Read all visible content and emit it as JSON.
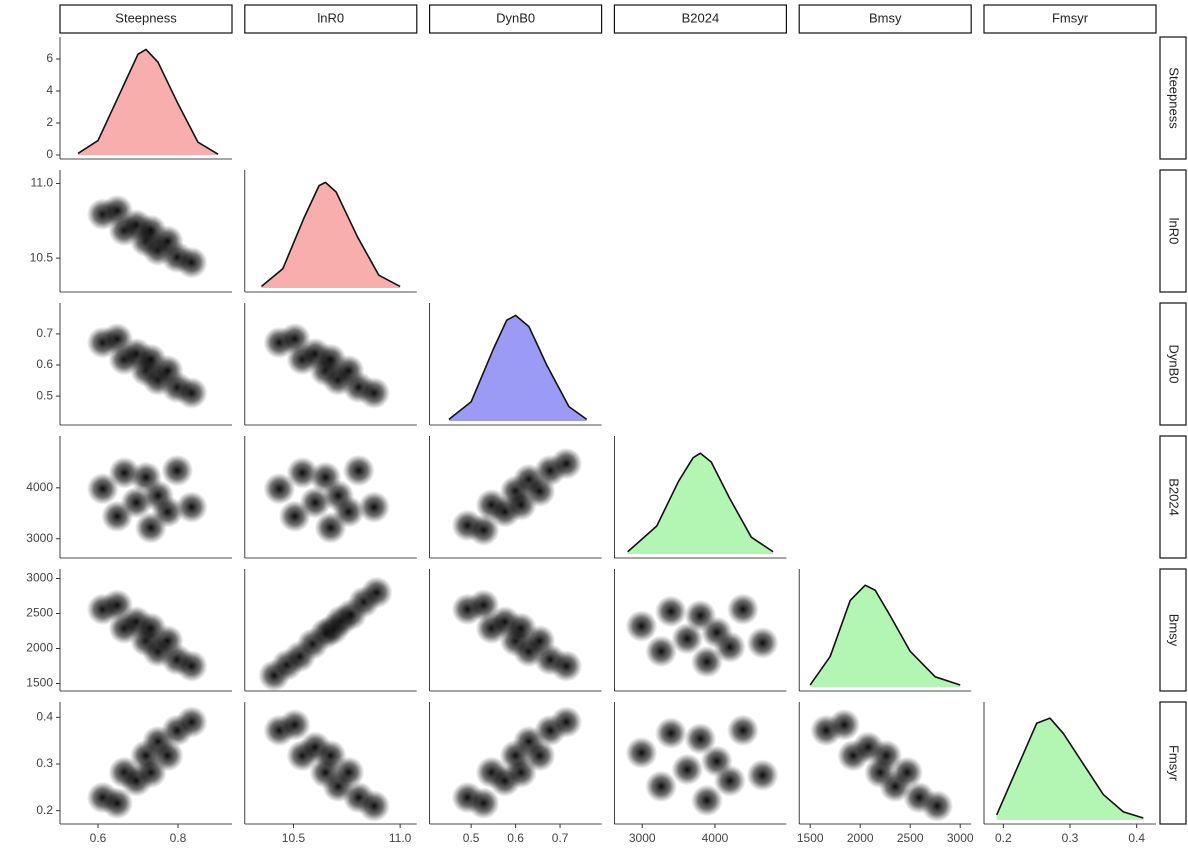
{
  "chart_data": {
    "type": "pairs",
    "variables": [
      {
        "name": "Steepness",
        "color": "#f9aeae",
        "xlim": [
          0.52,
          0.92
        ],
        "xticks": [
          0.6,
          0.8
        ],
        "density": {
          "x": [
            0.55,
            0.6,
            0.65,
            0.7,
            0.72,
            0.75,
            0.8,
            0.85,
            0.9
          ],
          "y": [
            0.1,
            0.9,
            3.6,
            6.3,
            6.6,
            5.8,
            3.2,
            0.8,
            0.05
          ],
          "ylim": [
            0,
            7
          ],
          "yticks": [
            0,
            2,
            4,
            6
          ]
        }
      },
      {
        "name": "lnR0",
        "color": "#f9aeae",
        "xlim": [
          10.3,
          11.05
        ],
        "xticks": [
          10.5,
          {
            "value": 11,
            "label": "11.0"
          }
        ],
        "density": {
          "x": [
            10.35,
            10.45,
            10.55,
            10.62,
            10.65,
            10.7,
            10.8,
            10.9,
            11.0
          ],
          "y": [
            0.05,
            0.6,
            2.2,
            3.2,
            3.3,
            3.0,
            1.6,
            0.4,
            0.05
          ],
          "ylim": [
            0,
            3.5
          ]
        }
      },
      {
        "name": "DynB0",
        "color": "#9b9bf6",
        "xlim": [
          0.42,
          0.78
        ],
        "xticks": [
          0.5,
          0.6,
          0.7
        ],
        "density": {
          "x": [
            0.45,
            0.5,
            0.55,
            0.58,
            0.6,
            0.63,
            0.67,
            0.72,
            0.76
          ],
          "y": [
            0.1,
            1.2,
            4.5,
            6.3,
            6.6,
            5.9,
            3.5,
            0.9,
            0.1
          ],
          "ylim": [
            0,
            7
          ]
        }
      },
      {
        "name": "B2024",
        "color": "#b3f5b3",
        "xlim": [
          2700,
          4900
        ],
        "xticks": [
          3000,
          4000
        ],
        "density": {
          "x": [
            2800,
            3200,
            3500,
            3700,
            3800,
            3950,
            4200,
            4500,
            4800
          ],
          "y": [
            0.02,
            0.25,
            0.65,
            0.86,
            0.9,
            0.82,
            0.5,
            0.15,
            0.02
          ],
          "ylim": [
            0,
            1
          ]
        }
      },
      {
        "name": "Bmsy",
        "color": "#b3f5b3",
        "xlim": [
          1450,
          3050
        ],
        "xticks": [
          1500,
          2000,
          2500,
          3000
        ],
        "density": {
          "x": [
            1500,
            1700,
            1900,
            2050,
            2150,
            2300,
            2500,
            2750,
            3000
          ],
          "y": [
            0.02,
            0.3,
            0.85,
            1.0,
            0.95,
            0.7,
            0.35,
            0.1,
            0.02
          ],
          "ylim": [
            0,
            1.1
          ]
        }
      },
      {
        "name": "Fmsyr",
        "color": "#b3f5b3",
        "xlim": [
          0.18,
          0.42
        ],
        "xticks": [
          0.2,
          0.3,
          0.4
        ],
        "density": {
          "x": [
            0.19,
            0.22,
            0.25,
            0.27,
            0.29,
            0.32,
            0.35,
            0.38,
            0.41
          ],
          "y": [
            0.05,
            0.5,
            0.95,
            1.0,
            0.85,
            0.55,
            0.25,
            0.08,
            0.02
          ],
          "ylim": [
            0,
            1.1
          ]
        }
      }
    ],
    "panels": [
      {
        "row": 1,
        "col": 0,
        "x": [
          0.612,
          0.648,
          0.666,
          0.696,
          0.72,
          0.732,
          0.75,
          0.774,
          0.798,
          0.834
        ],
        "y": [
          10.794,
          10.818,
          10.686,
          10.722,
          10.614,
          10.686,
          10.554,
          10.614,
          10.506,
          10.47
        ]
      },
      {
        "row": 2,
        "col": 0,
        "x": [
          0.612,
          0.648,
          0.666,
          0.696,
          0.72,
          0.732,
          0.75,
          0.774,
          0.798,
          0.834
        ],
        "y": [
          0.672,
          0.684,
          0.618,
          0.636,
          0.582,
          0.618,
          0.552,
          0.582,
          0.528,
          0.51
        ]
      },
      {
        "row": 2,
        "col": 1,
        "x": [
          10.434,
          10.506,
          10.542,
          10.602,
          10.65,
          10.674,
          10.71,
          10.758,
          10.806,
          10.878
        ],
        "y": [
          0.672,
          0.684,
          0.618,
          0.636,
          0.582,
          0.618,
          0.552,
          0.582,
          0.528,
          0.51
        ]
      },
      {
        "row": 3,
        "col": 0,
        "x": [
          0.612,
          0.648,
          0.666,
          0.696,
          0.72,
          0.732,
          0.75,
          0.774,
          0.798,
          0.834
        ],
        "y": [
          3980,
          3440,
          4295,
          3710,
          4205,
          3215,
          3845,
          3530,
          4340,
          3620
        ]
      },
      {
        "row": 3,
        "col": 1,
        "x": [
          10.434,
          10.506,
          10.542,
          10.602,
          10.65,
          10.674,
          10.71,
          10.758,
          10.806,
          10.878
        ],
        "y": [
          3980,
          3440,
          4295,
          3710,
          4205,
          3215,
          3845,
          3530,
          4340,
          3620
        ]
      },
      {
        "row": 3,
        "col": 2,
        "x": [
          0.492,
          0.528,
          0.546,
          0.576,
          0.6,
          0.612,
          0.63,
          0.654,
          0.678,
          0.714
        ],
        "y": [
          3260,
          3170,
          3665,
          3530,
          3935,
          3665,
          4160,
          3935,
          4340,
          4475
        ]
      },
      {
        "row": 4,
        "col": 0,
        "x": [
          0.612,
          0.648,
          0.666,
          0.696,
          0.72,
          0.732,
          0.75,
          0.774,
          0.798,
          0.834
        ],
        "y": [
          2560,
          2620,
          2290,
          2380,
          2110,
          2290,
          1960,
          2110,
          1840,
          1750
        ]
      },
      {
        "row": 4,
        "col": 1,
        "x": [
          10.41,
          10.47,
          10.53,
          10.59,
          10.65,
          10.686,
          10.722,
          10.77,
          10.83,
          10.89
        ],
        "y": [
          1615,
          1765,
          1885,
          2065,
          2215,
          2275,
          2395,
          2485,
          2665,
          2800
        ]
      },
      {
        "row": 4,
        "col": 2,
        "x": [
          0.492,
          0.528,
          0.546,
          0.576,
          0.6,
          0.612,
          0.63,
          0.654,
          0.678,
          0.714
        ],
        "y": [
          2560,
          2620,
          2290,
          2380,
          2110,
          2290,
          1960,
          2110,
          1840,
          1750
        ]
      },
      {
        "row": 4,
        "col": 3,
        "x": [
          2990,
          3260,
          3395,
          3620,
          3800,
          3890,
          4025,
          4205,
          4385,
          4655
        ],
        "y": [
          2320,
          1960,
          2530,
          2140,
          2470,
          1810,
          2230,
          2020,
          2560,
          2080
        ]
      },
      {
        "row": 5,
        "col": 0,
        "x": [
          0.612,
          0.648,
          0.666,
          0.696,
          0.72,
          0.732,
          0.75,
          0.774,
          0.798,
          0.834
        ],
        "y": [
          0.228,
          0.216,
          0.282,
          0.264,
          0.318,
          0.282,
          0.348,
          0.318,
          0.372,
          0.39
        ]
      },
      {
        "row": 5,
        "col": 1,
        "x": [
          10.434,
          10.506,
          10.542,
          10.602,
          10.65,
          10.674,
          10.71,
          10.758,
          10.806,
          10.878
        ],
        "y": [
          0.372,
          0.384,
          0.318,
          0.336,
          0.282,
          0.318,
          0.252,
          0.282,
          0.228,
          0.21
        ]
      },
      {
        "row": 5,
        "col": 2,
        "x": [
          0.492,
          0.528,
          0.546,
          0.576,
          0.6,
          0.612,
          0.63,
          0.654,
          0.678,
          0.714
        ],
        "y": [
          0.228,
          0.216,
          0.282,
          0.264,
          0.318,
          0.282,
          0.348,
          0.318,
          0.372,
          0.39
        ]
      },
      {
        "row": 5,
        "col": 3,
        "x": [
          2990,
          3260,
          3395,
          3620,
          3800,
          3890,
          4025,
          4205,
          4385,
          4655
        ],
        "y": [
          0.324,
          0.252,
          0.366,
          0.288,
          0.354,
          0.222,
          0.306,
          0.264,
          0.372,
          0.276
        ]
      },
      {
        "row": 5,
        "col": 4,
        "x": [
          1660,
          1840,
          1930,
          2080,
          2200,
          2260,
          2350,
          2470,
          2590,
          2770
        ],
        "y": [
          0.372,
          0.384,
          0.318,
          0.336,
          0.282,
          0.318,
          0.252,
          0.282,
          0.228,
          0.21
        ]
      }
    ]
  }
}
